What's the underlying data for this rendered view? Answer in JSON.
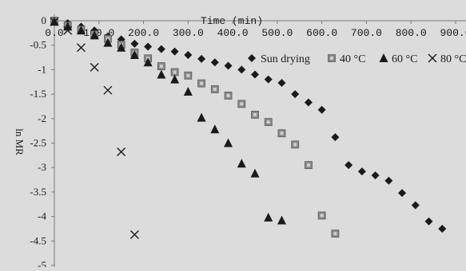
{
  "chart_data": {
    "type": "scatter",
    "title": "",
    "xlabel": "Time  (min)",
    "ylabel": "ln MR",
    "xlim": [
      0,
      900
    ],
    "ylim": [
      -5,
      0
    ],
    "x_ticks": [
      "0.0",
      "100.0",
      "200.0",
      "300.0",
      "400.0",
      "500.0",
      "600.0",
      "700.0",
      "800.0",
      "900.0"
    ],
    "y_ticks": [
      "0",
      "-0.5",
      "-1",
      "-1.5",
      "-2",
      "-2.5",
      "-3",
      "-3.5",
      "-4",
      "-4.5",
      "-5"
    ],
    "legend_position": "top-right",
    "grid": false,
    "series": [
      {
        "name": "Sun drying",
        "marker": "diamond",
        "color": "#1a1a1a",
        "x": [
          0,
          30,
          60,
          90,
          120,
          150,
          180,
          210,
          240,
          270,
          300,
          330,
          360,
          390,
          420,
          450,
          480,
          510,
          540,
          570,
          600,
          630,
          660,
          690,
          720,
          750,
          780,
          810,
          840,
          870
        ],
        "y": [
          0,
          -0.05,
          -0.12,
          -0.2,
          -0.32,
          -0.38,
          -0.47,
          -0.53,
          -0.58,
          -0.63,
          -0.7,
          -0.78,
          -0.85,
          -0.92,
          -1.0,
          -1.1,
          -1.2,
          -1.27,
          -1.5,
          -1.67,
          -1.82,
          -2.38,
          -2.95,
          -3.08,
          -3.16,
          -3.27,
          -3.52,
          -3.77,
          -4.1,
          -4.25
        ]
      },
      {
        "name": "40 °C",
        "marker": "square",
        "color": "#8a8a8a",
        "x": [
          0,
          30,
          60,
          90,
          120,
          150,
          180,
          210,
          240,
          270,
          300,
          330,
          360,
          390,
          420,
          450,
          480,
          510,
          540,
          570,
          600,
          630
        ],
        "y": [
          0,
          -0.1,
          -0.18,
          -0.28,
          -0.37,
          -0.49,
          -0.65,
          -0.77,
          -0.93,
          -1.05,
          -1.12,
          -1.28,
          -1.4,
          -1.53,
          -1.7,
          -1.92,
          -2.07,
          -2.3,
          -2.53,
          -2.95,
          -3.98,
          -4.35
        ]
      },
      {
        "name": "60 °C",
        "marker": "triangle",
        "color": "#1a1a1a",
        "x": [
          0,
          30,
          60,
          90,
          120,
          150,
          180,
          210,
          240,
          270,
          300,
          330,
          360,
          390,
          420,
          450,
          480,
          510
        ],
        "y": [
          -0.02,
          -0.12,
          -0.2,
          -0.3,
          -0.45,
          -0.55,
          -0.7,
          -0.85,
          -1.1,
          -1.2,
          -1.45,
          -1.98,
          -2.22,
          -2.5,
          -2.92,
          -3.12,
          -4.02,
          -4.08
        ]
      },
      {
        "name": "80 °C",
        "marker": "x",
        "color": "#1a1a1a",
        "x": [
          0,
          30,
          60,
          90,
          120,
          150,
          180
        ],
        "y": [
          -0.02,
          -0.2,
          -0.55,
          -0.95,
          -1.42,
          -2.68,
          -4.37
        ]
      }
    ]
  }
}
